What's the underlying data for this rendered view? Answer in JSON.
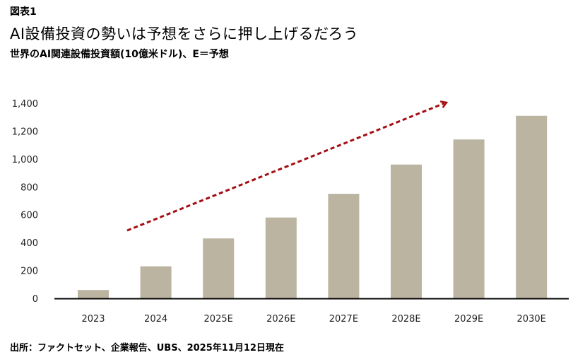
{
  "header": {
    "figure_label": "図表1",
    "title": "AI設備投資の勢いは予想をさらに押し上げるだろう",
    "subtitle": "世界のAI関連設備投資額(10億米ドル)、E＝予想"
  },
  "footer": {
    "source": "出所：ファクトセット、企業報告、UBS、2025年11月12日現在"
  },
  "colors": {
    "bar": "#bbb4a1",
    "arrow": "#a50d12",
    "axis": "#000000"
  },
  "chart_data": {
    "type": "bar",
    "title": "AI設備投資の勢いは予想をさらに押し上げるだろう",
    "subtitle": "世界のAI関連設備投資額(10億米ドル)、E＝予想",
    "xlabel": "",
    "ylabel": "",
    "categories": [
      "2023",
      "2024",
      "2025E",
      "2026E",
      "2027E",
      "2028E",
      "2029E",
      "2030E"
    ],
    "values": [
      60,
      230,
      430,
      580,
      750,
      960,
      1140,
      1310
    ],
    "ylim": [
      0,
      1400
    ],
    "yticks": [
      0,
      200,
      400,
      600,
      800,
      1000,
      1200,
      1400
    ],
    "ytick_labels": [
      "0",
      "200",
      "400",
      "600",
      "800",
      "1,000",
      "1,200",
      "1,400"
    ],
    "grid": false,
    "annotations": [
      {
        "type": "dashed-arrow",
        "meaning": "upward trend"
      }
    ]
  }
}
